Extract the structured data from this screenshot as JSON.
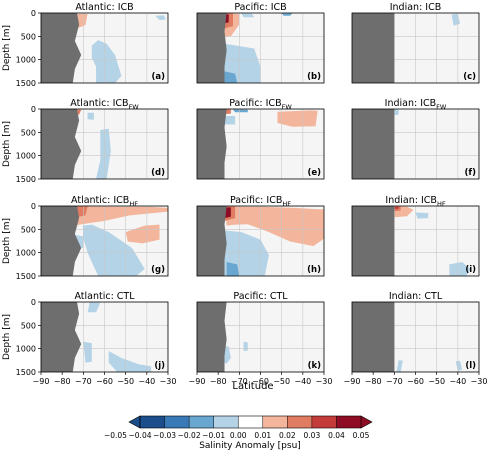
{
  "figure": {
    "y_axis_label": "Depth [m]",
    "x_axis_label": "Latitude",
    "colorbar_label": "Salinity Anomaly [psu]",
    "colorbar_ticks": [
      "−0.05",
      "−0.04",
      "−0.03",
      "−0.02",
      "−0.01",
      "0.00",
      "0.01",
      "0.02",
      "0.03",
      "0.04",
      "0.05"
    ],
    "colorbar_colors": [
      "#1c4e8c",
      "#3979b6",
      "#6aa7d0",
      "#b5d3e7",
      "#ffffff",
      "#f3b59c",
      "#e07c62",
      "#c43c39",
      "#8e0d25"
    ],
    "land_color": "#6e6e6e",
    "background_color": "#f5f5f5"
  },
  "chart_data": {
    "type": "heatmap",
    "xlim": [
      -90,
      -30
    ],
    "ylim": [
      1500,
      0
    ],
    "x_ticks": [
      "−90",
      "−80",
      "−70",
      "−60",
      "−50",
      "−40",
      "−30"
    ],
    "y_ticks": [
      "0",
      "500",
      "1000",
      "1500"
    ],
    "grid": true,
    "panels": [
      {
        "id": "a",
        "label": "(a)",
        "title_base": "Atlantic: ICB",
        "title_sub": "",
        "ocean": "Atlantic",
        "experiment": "ICB"
      },
      {
        "id": "b",
        "label": "(b)",
        "title_base": "Pacific: ICB",
        "title_sub": "",
        "ocean": "Pacific",
        "experiment": "ICB"
      },
      {
        "id": "c",
        "label": "(c)",
        "title_base": "Indian: ICB",
        "title_sub": "",
        "ocean": "Indian",
        "experiment": "ICB"
      },
      {
        "id": "d",
        "label": "(d)",
        "title_base": "Atlantic: ICB",
        "title_sub": "FW",
        "ocean": "Atlantic",
        "experiment": "ICB_FW"
      },
      {
        "id": "e",
        "label": "(e)",
        "title_base": "Pacific: ICB",
        "title_sub": "FW",
        "ocean": "Pacific",
        "experiment": "ICB_FW"
      },
      {
        "id": "f",
        "label": "(f)",
        "title_base": "Indian: ICB",
        "title_sub": "FW",
        "ocean": "Indian",
        "experiment": "ICB_FW"
      },
      {
        "id": "g",
        "label": "(g)",
        "title_base": "Atlantic: ICB",
        "title_sub": "HF",
        "ocean": "Atlantic",
        "experiment": "ICB_HF"
      },
      {
        "id": "h",
        "label": "(h)",
        "title_base": "Pacific: ICB",
        "title_sub": "HF",
        "ocean": "Pacific",
        "experiment": "ICB_HF"
      },
      {
        "id": "i",
        "label": "(i)",
        "title_base": "Indian: ICB",
        "title_sub": "HF",
        "ocean": "Indian",
        "experiment": "ICB_HF"
      },
      {
        "id": "j",
        "label": "(j)",
        "title_base": "Atlantic: CTL",
        "title_sub": "",
        "ocean": "Atlantic",
        "experiment": "CTL"
      },
      {
        "id": "k",
        "label": "(k)",
        "title_base": "Pacific: CTL",
        "title_sub": "",
        "ocean": "Pacific",
        "experiment": "CTL"
      },
      {
        "id": "l",
        "label": "(l)",
        "title_base": "Indian: CTL",
        "title_sub": "",
        "ocean": "Indian",
        "experiment": "CTL"
      }
    ]
  }
}
